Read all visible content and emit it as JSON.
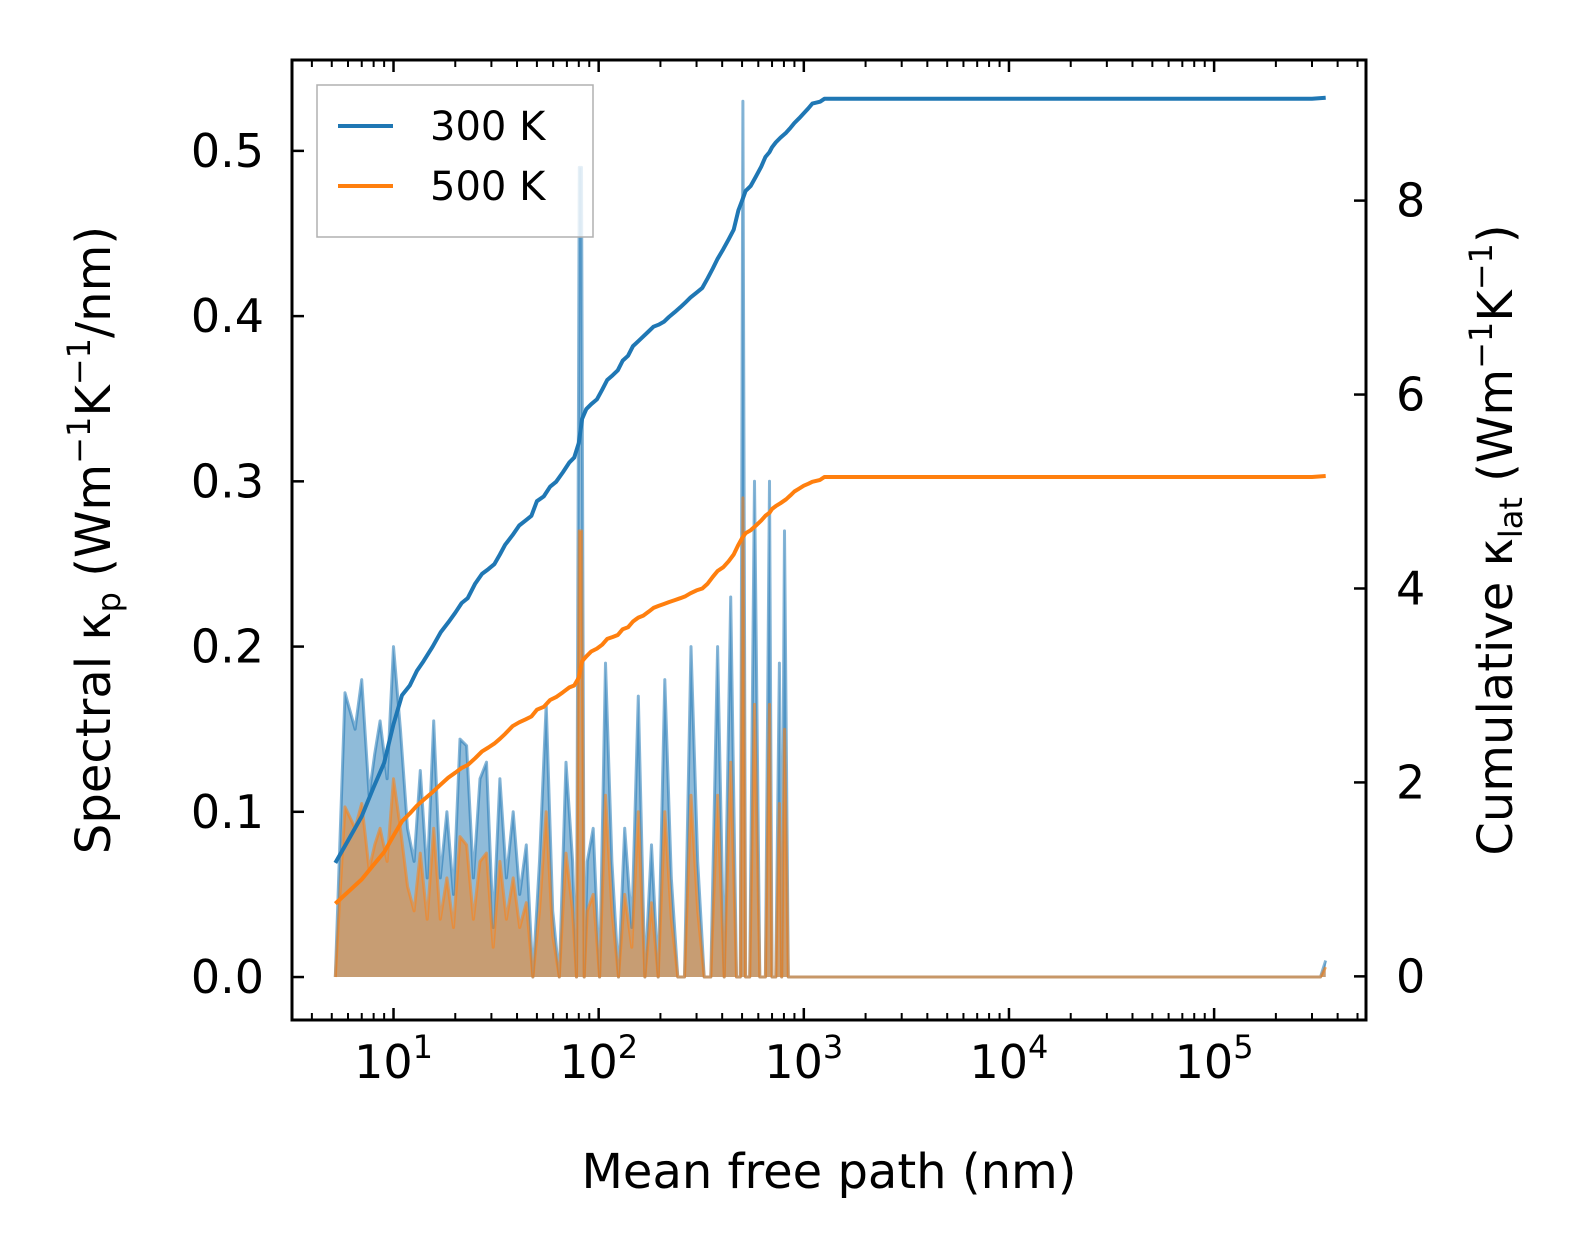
{
  "chart_data": {
    "type": "area+line (dual axis)",
    "xlabel": "Mean free path (nm)",
    "ylabel_left": "Spectral κp (Wm⁻¹K⁻¹/nm)",
    "ylabel_left_parts": {
      "pre": "Spectral κ",
      "sub": "p",
      "post": " (Wm",
      "e1": "−1",
      "m1": "K",
      "e2": "−1",
      "end": "/nm)"
    },
    "ylabel_right": "Cumulative κlat (Wm⁻¹K⁻¹)",
    "ylabel_right_parts": {
      "pre": "Cumulative κ",
      "sub": "lat",
      "post": " (Wm",
      "e1": "−1",
      "m1": "K",
      "e2": "−1",
      "end": ")"
    },
    "xscale": "log",
    "xlim": [
      3.2,
      550000
    ],
    "ylim_left": [
      -0.026,
      0.555
    ],
    "ylim_right": [
      -0.45,
      9.45
    ],
    "x_ticks": [
      {
        "value": 10,
        "base": "10",
        "exp": "1"
      },
      {
        "value": 100,
        "base": "10",
        "exp": "2"
      },
      {
        "value": 1000,
        "base": "10",
        "exp": "3"
      },
      {
        "value": 10000,
        "base": "10",
        "exp": "4"
      },
      {
        "value": 100000,
        "base": "10",
        "exp": "5"
      }
    ],
    "y_ticks_left": [
      {
        "value": 0.0,
        "label": "0.0"
      },
      {
        "value": 0.1,
        "label": "0.1"
      },
      {
        "value": 0.2,
        "label": "0.2"
      },
      {
        "value": 0.3,
        "label": "0.3"
      },
      {
        "value": 0.4,
        "label": "0.4"
      },
      {
        "value": 0.5,
        "label": "0.5"
      }
    ],
    "y_ticks_right": [
      {
        "value": 0,
        "label": "0"
      },
      {
        "value": 2,
        "label": "2"
      },
      {
        "value": 4,
        "label": "4"
      },
      {
        "value": 6,
        "label": "6"
      },
      {
        "value": 8,
        "label": "8"
      }
    ],
    "legend_position": "top-left",
    "series": [
      {
        "name": "300 K",
        "color": "#1f77b4",
        "spectral_x": [
          5.2,
          5.8,
          6.5,
          7.0,
          7.6,
          8.1,
          8.6,
          9.3,
          10.0,
          10.8,
          11.7,
          12.6,
          13.5,
          14.6,
          15.7,
          16.9,
          18.2,
          19.6,
          21.1,
          22.7,
          24.5,
          26.4,
          28.4,
          30.6,
          33.0,
          35.5,
          38.3,
          41.2,
          44.4,
          47.8,
          51.5,
          55.5,
          59.7,
          64.3,
          69.3,
          74.6,
          78.0,
          80.5,
          82.5,
          85.0,
          88.0,
          94.0,
          101,
          108,
          116,
          125,
          134,
          145,
          156,
          168,
          181,
          195,
          210,
          226,
          243,
          262,
          282,
          304,
          327,
          352,
          380,
          409,
          440,
          470,
          490,
          505,
          520,
          545,
          575,
          610,
          650,
          680,
          700,
          730,
          760,
          780,
          805,
          840,
          900,
          950,
          990,
          1040,
          1100,
          1200,
          1280,
          1330,
          1380,
          1450,
          1500,
          1600,
          300000,
          330000,
          350000
        ],
        "spectral_y": [
          0.0,
          0.172,
          0.15,
          0.18,
          0.11,
          0.135,
          0.155,
          0.12,
          0.2,
          0.15,
          0.09,
          0.07,
          0.125,
          0.06,
          0.155,
          0.06,
          0.1,
          0.05,
          0.144,
          0.14,
          0.06,
          0.12,
          0.13,
          0.03,
          0.12,
          0.06,
          0.1,
          0.05,
          0.08,
          0.0,
          0.07,
          0.165,
          0.04,
          0.0,
          0.13,
          0.07,
          0.0,
          0.49,
          0.49,
          0.0,
          0.07,
          0.09,
          0.0,
          0.19,
          0.07,
          0.0,
          0.09,
          0.03,
          0.17,
          0.0,
          0.08,
          0.0,
          0.18,
          0.06,
          0.0,
          0.0,
          0.2,
          0.07,
          0.0,
          0.0,
          0.2,
          0.0,
          0.23,
          0.0,
          0.0,
          0.53,
          0.0,
          0.0,
          0.3,
          0.0,
          0.0,
          0.3,
          0.0,
          0.0,
          0.19,
          0.0,
          0.27,
          0.0,
          0.0,
          0.0,
          0.0,
          0.0,
          0.0,
          0.0,
          0.0,
          0.0,
          0.0,
          0.0,
          0.0,
          0.0,
          0.0,
          0.0,
          0.01
        ],
        "cumulative_x": [
          5.2,
          6.0,
          7.0,
          8.0,
          9.0,
          10.0,
          11.0,
          12.0,
          13.0,
          14.0,
          15.5,
          17.0,
          18.5,
          20.0,
          21.5,
          23.0,
          25.0,
          27.0,
          29.0,
          31.0,
          33.0,
          35.0,
          38.0,
          41.0,
          44.0,
          47.0,
          50.0,
          54.0,
          58.0,
          62.0,
          67.0,
          72.0,
          76.0,
          80.0,
          83.0,
          87.0,
          92.0,
          98.0,
          104,
          110,
          117,
          124,
          131,
          139,
          147,
          156,
          165,
          175,
          185,
          196,
          208,
          220,
          235,
          250,
          265,
          280,
          300,
          320,
          340,
          360,
          380,
          405,
          430,
          455,
          480,
          500,
          520,
          550,
          585,
          620,
          650,
          680,
          700,
          730,
          770,
          820,
          860,
          900,
          950,
          1000,
          1050,
          1100,
          1200,
          1260,
          1310,
          1360,
          1400,
          1500,
          2000,
          5000,
          20000,
          100000,
          300000,
          350000
        ],
        "cumulative_y": [
          1.17,
          1.4,
          1.65,
          1.95,
          2.2,
          2.6,
          2.9,
          3.0,
          3.15,
          3.25,
          3.4,
          3.55,
          3.65,
          3.75,
          3.85,
          3.9,
          4.05,
          4.15,
          4.2,
          4.25,
          4.35,
          4.45,
          4.55,
          4.65,
          4.7,
          4.75,
          4.9,
          4.95,
          5.05,
          5.1,
          5.2,
          5.3,
          5.35,
          5.5,
          5.75,
          5.85,
          5.9,
          5.95,
          6.05,
          6.15,
          6.2,
          6.25,
          6.35,
          6.4,
          6.5,
          6.55,
          6.6,
          6.65,
          6.7,
          6.72,
          6.75,
          6.8,
          6.85,
          6.9,
          6.95,
          7.0,
          7.05,
          7.1,
          7.2,
          7.3,
          7.4,
          7.5,
          7.6,
          7.7,
          7.9,
          8.0,
          8.1,
          8.15,
          8.25,
          8.35,
          8.45,
          8.5,
          8.55,
          8.6,
          8.65,
          8.7,
          8.75,
          8.8,
          8.85,
          8.9,
          8.95,
          9.0,
          9.02,
          9.05,
          9.05,
          9.05,
          9.05,
          9.05,
          9.05,
          9.05,
          9.05,
          9.05,
          9.05,
          9.06
        ]
      },
      {
        "name": "500 K",
        "color": "#ff7f0e",
        "spectral_x": [
          5.2,
          5.8,
          6.5,
          7.0,
          7.6,
          8.1,
          8.6,
          9.3,
          10.0,
          10.8,
          11.7,
          12.6,
          13.5,
          14.6,
          15.7,
          16.9,
          18.2,
          19.6,
          21.1,
          22.7,
          24.5,
          26.4,
          28.4,
          30.6,
          33.0,
          35.5,
          38.3,
          41.2,
          44.4,
          47.8,
          51.5,
          55.5,
          59.7,
          64.3,
          69.3,
          74.6,
          78.0,
          80.5,
          82.5,
          85.0,
          88.0,
          94.0,
          101,
          108,
          116,
          125,
          134,
          145,
          156,
          168,
          181,
          195,
          210,
          226,
          243,
          262,
          282,
          304,
          327,
          352,
          380,
          409,
          440,
          470,
          490,
          505,
          520,
          545,
          575,
          610,
          650,
          680,
          700,
          730,
          760,
          780,
          805,
          840,
          900,
          950,
          990,
          1040,
          1100,
          1200,
          1280,
          1330,
          1380,
          1450,
          1500,
          1600,
          300000,
          330000,
          350000
        ],
        "spectral_y": [
          0.0,
          0.103,
          0.09,
          0.105,
          0.065,
          0.08,
          0.09,
          0.07,
          0.12,
          0.09,
          0.055,
          0.04,
          0.075,
          0.035,
          0.09,
          0.035,
          0.06,
          0.03,
          0.085,
          0.08,
          0.035,
          0.07,
          0.075,
          0.018,
          0.07,
          0.035,
          0.06,
          0.03,
          0.045,
          0.0,
          0.04,
          0.1,
          0.025,
          0.0,
          0.075,
          0.04,
          0.0,
          0.27,
          0.27,
          0.0,
          0.04,
          0.05,
          0.0,
          0.11,
          0.04,
          0.0,
          0.05,
          0.018,
          0.1,
          0.0,
          0.045,
          0.0,
          0.1,
          0.035,
          0.0,
          0.0,
          0.11,
          0.04,
          0.0,
          0.0,
          0.11,
          0.0,
          0.13,
          0.0,
          0.0,
          0.29,
          0.0,
          0.0,
          0.165,
          0.0,
          0.0,
          0.165,
          0.0,
          0.0,
          0.105,
          0.0,
          0.15,
          0.0,
          0.0,
          0.0,
          0.0,
          0.0,
          0.0,
          0.0,
          0.0,
          0.0,
          0.0,
          0.0,
          0.0,
          0.0,
          0.0,
          0.0,
          0.006
        ],
        "cumulative_x": [
          5.2,
          6.0,
          7.0,
          8.0,
          9.0,
          10.0,
          11.0,
          12.0,
          13.0,
          14.0,
          15.5,
          17.0,
          18.5,
          20.0,
          21.5,
          23.0,
          25.0,
          27.0,
          29.0,
          31.0,
          33.0,
          35.0,
          38.0,
          41.0,
          44.0,
          47.0,
          50.0,
          54.0,
          58.0,
          62.0,
          67.0,
          72.0,
          76.0,
          80.0,
          83.0,
          87.0,
          92.0,
          98.0,
          104,
          110,
          117,
          124,
          131,
          139,
          147,
          156,
          165,
          175,
          185,
          196,
          208,
          220,
          235,
          250,
          265,
          280,
          300,
          320,
          340,
          360,
          380,
          405,
          430,
          455,
          480,
          500,
          520,
          550,
          585,
          620,
          650,
          680,
          700,
          730,
          770,
          820,
          860,
          900,
          950,
          1000,
          1050,
          1100,
          1200,
          1260,
          1310,
          1360,
          1400,
          1500,
          2000,
          5000,
          20000,
          100000,
          300000,
          350000
        ],
        "cumulative_y": [
          0.75,
          0.87,
          1.0,
          1.15,
          1.28,
          1.45,
          1.6,
          1.68,
          1.76,
          1.82,
          1.9,
          1.98,
          2.05,
          2.1,
          2.15,
          2.18,
          2.25,
          2.32,
          2.36,
          2.4,
          2.45,
          2.5,
          2.58,
          2.62,
          2.65,
          2.68,
          2.75,
          2.78,
          2.85,
          2.88,
          2.93,
          2.98,
          3.0,
          3.08,
          3.25,
          3.3,
          3.35,
          3.38,
          3.42,
          3.48,
          3.5,
          3.52,
          3.58,
          3.6,
          3.66,
          3.7,
          3.72,
          3.76,
          3.8,
          3.82,
          3.84,
          3.86,
          3.88,
          3.9,
          3.92,
          3.95,
          3.98,
          4.0,
          4.05,
          4.12,
          4.18,
          4.22,
          4.28,
          4.35,
          4.45,
          4.52,
          4.57,
          4.6,
          4.65,
          4.7,
          4.75,
          4.78,
          4.82,
          4.85,
          4.88,
          4.92,
          4.96,
          5.0,
          5.03,
          5.06,
          5.08,
          5.1,
          5.12,
          5.15,
          5.15,
          5.15,
          5.15,
          5.15,
          5.15,
          5.15,
          5.15,
          5.15,
          5.15,
          5.16
        ]
      }
    ]
  }
}
